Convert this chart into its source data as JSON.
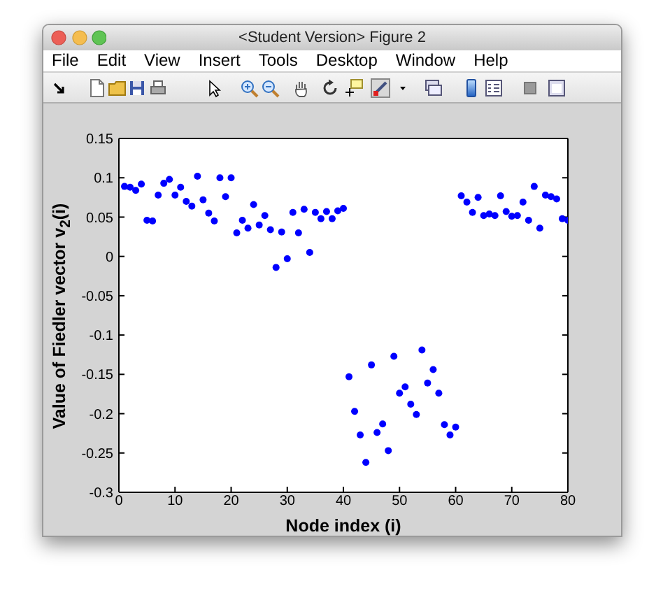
{
  "chart_data": {
    "type": "scatter",
    "title": "<Student Version> Figure 2",
    "annotations": [
      "File",
      "Edit",
      "View",
      "Insert",
      "Tools",
      "Desktop",
      "Window",
      "Help"
    ],
    "xlabel": "Node index (i)",
    "ylabel": "Value of Fiedler vector v$_{2}$(i)",
    "x": [
      1,
      2,
      3,
      4,
      5,
      6,
      7,
      8,
      9,
      10,
      11,
      12,
      13,
      14,
      15,
      16,
      17,
      18,
      19,
      20,
      21,
      22,
      23,
      24,
      25,
      26,
      27,
      28,
      29,
      30,
      31,
      32,
      33,
      34,
      35,
      36,
      37,
      38,
      39,
      40,
      41,
      42,
      43,
      44,
      45,
      46,
      47,
      48,
      49,
      50,
      51,
      52,
      53,
      54,
      55,
      56,
      57,
      58,
      59,
      60,
      61,
      62,
      63,
      64,
      65,
      66,
      67,
      68,
      69,
      70,
      71,
      72,
      73,
      74,
      75,
      76,
      77,
      78,
      79,
      80
    ],
    "values": [
      0.089,
      0.088,
      0.084,
      0.092,
      0.046,
      0.045,
      0.078,
      0.093,
      0.098,
      0.078,
      0.088,
      0.07,
      0.064,
      0.102,
      0.072,
      0.055,
      0.045,
      0.1,
      0.076,
      0.1,
      0.03,
      0.046,
      0.036,
      0.066,
      0.04,
      0.052,
      0.034,
      -0.014,
      0.031,
      -0.003,
      0.056,
      0.03,
      0.06,
      0.005,
      0.056,
      0.048,
      0.057,
      0.048,
      0.058,
      0.061,
      -0.153,
      -0.197,
      -0.227,
      -0.262,
      -0.138,
      -0.224,
      -0.213,
      -0.247,
      -0.127,
      -0.174,
      -0.166,
      -0.188,
      -0.201,
      -0.119,
      -0.161,
      -0.144,
      -0.174,
      -0.214,
      -0.227,
      -0.217,
      0.077,
      0.069,
      0.056,
      0.075,
      0.052,
      0.054,
      0.052,
      0.077,
      0.057,
      0.051,
      0.052,
      0.069,
      0.046,
      0.089,
      0.036,
      0.078,
      0.076,
      0.073,
      0.048,
      0.046
    ],
    "color": "#0000ff",
    "marker": "circle",
    "xlim": [
      0,
      80
    ],
    "xticks": [
      0,
      10,
      20,
      30,
      40,
      50,
      60,
      70,
      80
    ],
    "ylim": [
      -0.3,
      0.15
    ],
    "yticks": [
      -0.3,
      -0.25,
      -0.2,
      -0.15,
      -0.1,
      -0.05,
      0,
      0.05,
      0.1,
      0.15
    ]
  }
}
